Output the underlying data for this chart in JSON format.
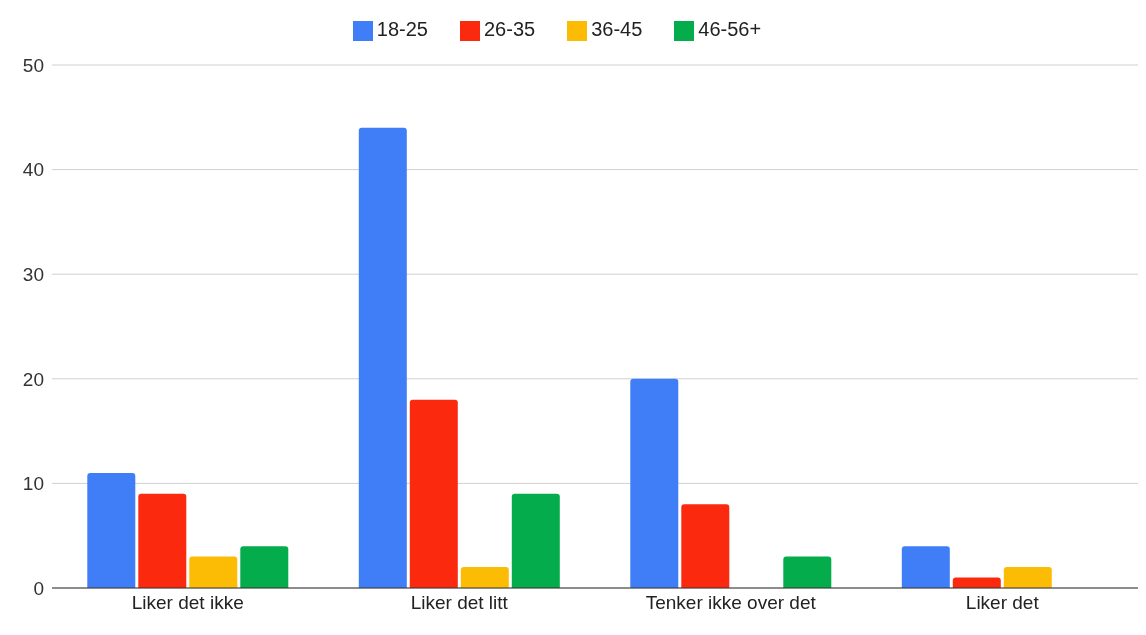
{
  "chart_data": {
    "type": "bar",
    "categories": [
      "Liker det ikke",
      "Liker det litt",
      "Tenker ikke over det",
      "Liker det"
    ],
    "series": [
      {
        "name": "18-25",
        "color": "#3f7ef6",
        "values": [
          11,
          44,
          20,
          4
        ]
      },
      {
        "name": "26-35",
        "color": "#fb2a0e",
        "values": [
          9,
          18,
          8,
          1
        ]
      },
      {
        "name": "36-45",
        "color": "#fcbc05",
        "values": [
          3,
          2,
          0,
          2
        ]
      },
      {
        "name": "46-56+",
        "color": "#05ac4b",
        "values": [
          4,
          9,
          3,
          0
        ]
      }
    ],
    "ylim": [
      0,
      50
    ],
    "yticks": [
      0,
      10,
      20,
      30,
      40,
      50
    ],
    "grid": "y",
    "legend": "top"
  }
}
